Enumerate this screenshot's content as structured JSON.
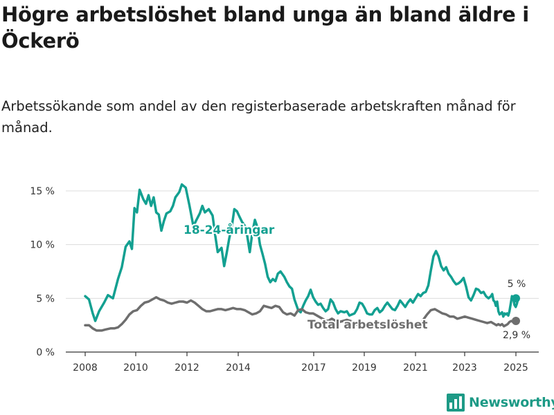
{
  "header": {
    "title": "Högre arbetslöshet bland unga än bland äldre i Öckerö",
    "subtitle": "Arbetssökande som andel av den registerbaserade arbetskraften månad för månad."
  },
  "brand": {
    "name": "Newsworthy",
    "icon": "bar-chart-logo-icon",
    "color": "#1d9a86"
  },
  "chart_data": {
    "type": "line",
    "title": "Högre arbetslöshet bland unga än bland äldre i Öckerö",
    "subtitle": "Arbetssökande som andel av den registerbaserade arbetskraften månad för månad.",
    "xlabel": "",
    "ylabel": "",
    "ylim": [
      0,
      15
    ],
    "xlim": [
      2007.5,
      2025.9
    ],
    "grid": "horizontal",
    "x_ticks": [
      "2008",
      "2010",
      "2012",
      "2014",
      "2017",
      "2019",
      "2021",
      "2023",
      "2025"
    ],
    "y_ticks": [
      "0 %",
      "5 %",
      "10 %",
      "15 %"
    ],
    "series": [
      {
        "name": "18-24-åringar",
        "color": "#13a091",
        "end_label": "5 %",
        "points": [
          [
            2008.0,
            5.2
          ],
          [
            2008.15,
            4.9
          ],
          [
            2008.3,
            3.6
          ],
          [
            2008.4,
            2.9
          ],
          [
            2008.55,
            3.8
          ],
          [
            2008.75,
            4.6
          ],
          [
            2008.9,
            5.3
          ],
          [
            2009.1,
            5.0
          ],
          [
            2009.3,
            6.8
          ],
          [
            2009.45,
            7.9
          ],
          [
            2009.6,
            9.8
          ],
          [
            2009.75,
            10.3
          ],
          [
            2009.85,
            9.6
          ],
          [
            2009.95,
            13.4
          ],
          [
            2010.05,
            13.0
          ],
          [
            2010.15,
            15.1
          ],
          [
            2010.3,
            14.2
          ],
          [
            2010.4,
            13.8
          ],
          [
            2010.5,
            14.6
          ],
          [
            2010.6,
            13.6
          ],
          [
            2010.7,
            14.4
          ],
          [
            2010.8,
            13.0
          ],
          [
            2010.9,
            12.8
          ],
          [
            2011.0,
            11.3
          ],
          [
            2011.1,
            12.2
          ],
          [
            2011.2,
            12.9
          ],
          [
            2011.35,
            13.1
          ],
          [
            2011.45,
            13.6
          ],
          [
            2011.55,
            14.4
          ],
          [
            2011.7,
            14.9
          ],
          [
            2011.8,
            15.6
          ],
          [
            2011.95,
            15.3
          ],
          [
            2012.1,
            13.6
          ],
          [
            2012.25,
            11.7
          ],
          [
            2012.35,
            12.2
          ],
          [
            2012.5,
            12.9
          ],
          [
            2012.6,
            13.6
          ],
          [
            2012.7,
            13.0
          ],
          [
            2012.85,
            13.3
          ],
          [
            2013.0,
            12.7
          ],
          [
            2013.1,
            10.9
          ],
          [
            2013.2,
            9.3
          ],
          [
            2013.35,
            9.7
          ],
          [
            2013.45,
            8.0
          ],
          [
            2013.55,
            9.2
          ],
          [
            2013.65,
            10.6
          ],
          [
            2013.75,
            11.7
          ],
          [
            2013.85,
            13.3
          ],
          [
            2013.95,
            13.1
          ],
          [
            2014.05,
            12.6
          ],
          [
            2014.15,
            12.1
          ],
          [
            2014.3,
            11.6
          ],
          [
            2014.45,
            9.3
          ],
          [
            2014.55,
            11.1
          ],
          [
            2014.65,
            12.3
          ],
          [
            2014.75,
            11.6
          ],
          [
            2014.85,
            10.0
          ],
          [
            2014.95,
            9.1
          ],
          [
            2015.05,
            8.2
          ],
          [
            2015.15,
            7.0
          ],
          [
            2015.25,
            6.5
          ],
          [
            2015.35,
            6.8
          ],
          [
            2015.45,
            6.6
          ],
          [
            2015.55,
            7.3
          ],
          [
            2015.65,
            7.5
          ],
          [
            2015.8,
            7.0
          ],
          [
            2015.9,
            6.5
          ],
          [
            2016.0,
            6.1
          ],
          [
            2016.1,
            5.9
          ],
          [
            2016.2,
            4.9
          ],
          [
            2016.35,
            3.9
          ],
          [
            2016.45,
            3.7
          ],
          [
            2016.55,
            4.3
          ],
          [
            2016.65,
            4.8
          ],
          [
            2016.75,
            5.2
          ],
          [
            2016.85,
            5.8
          ],
          [
            2016.95,
            5.1
          ],
          [
            2017.05,
            4.7
          ],
          [
            2017.15,
            4.4
          ],
          [
            2017.25,
            4.5
          ],
          [
            2017.35,
            4.1
          ],
          [
            2017.45,
            3.8
          ],
          [
            2017.55,
            4.0
          ],
          [
            2017.65,
            4.9
          ],
          [
            2017.75,
            4.6
          ],
          [
            2017.85,
            4.0
          ],
          [
            2017.95,
            3.6
          ],
          [
            2018.05,
            3.8
          ],
          [
            2018.2,
            3.7
          ],
          [
            2018.3,
            3.8
          ],
          [
            2018.4,
            3.4
          ],
          [
            2018.5,
            3.5
          ],
          [
            2018.6,
            3.6
          ],
          [
            2018.7,
            4.0
          ],
          [
            2018.8,
            4.6
          ],
          [
            2018.9,
            4.5
          ],
          [
            2019.0,
            4.1
          ],
          [
            2019.1,
            3.6
          ],
          [
            2019.2,
            3.5
          ],
          [
            2019.3,
            3.5
          ],
          [
            2019.4,
            3.9
          ],
          [
            2019.5,
            4.1
          ],
          [
            2019.6,
            3.7
          ],
          [
            2019.7,
            3.9
          ],
          [
            2019.8,
            4.3
          ],
          [
            2019.9,
            4.6
          ],
          [
            2020.0,
            4.3
          ],
          [
            2020.1,
            4.0
          ],
          [
            2020.2,
            3.9
          ],
          [
            2020.3,
            4.3
          ],
          [
            2020.4,
            4.8
          ],
          [
            2020.5,
            4.5
          ],
          [
            2020.6,
            4.2
          ],
          [
            2020.7,
            4.6
          ],
          [
            2020.8,
            4.9
          ],
          [
            2020.9,
            4.6
          ],
          [
            2021.0,
            5.0
          ],
          [
            2021.1,
            5.4
          ],
          [
            2021.2,
            5.2
          ],
          [
            2021.3,
            5.5
          ],
          [
            2021.4,
            5.6
          ],
          [
            2021.5,
            6.2
          ],
          [
            2021.6,
            7.6
          ],
          [
            2021.7,
            8.9
          ],
          [
            2021.8,
            9.4
          ],
          [
            2021.9,
            8.9
          ],
          [
            2022.0,
            8.0
          ],
          [
            2022.1,
            7.6
          ],
          [
            2022.2,
            7.9
          ],
          [
            2022.3,
            7.3
          ],
          [
            2022.4,
            7.0
          ],
          [
            2022.5,
            6.6
          ],
          [
            2022.6,
            6.3
          ],
          [
            2022.7,
            6.4
          ],
          [
            2022.8,
            6.6
          ],
          [
            2022.9,
            6.9
          ],
          [
            2023.0,
            6.1
          ],
          [
            2023.1,
            5.1
          ],
          [
            2023.2,
            4.8
          ],
          [
            2023.3,
            5.3
          ],
          [
            2023.4,
            5.9
          ],
          [
            2023.5,
            5.8
          ],
          [
            2023.6,
            5.5
          ],
          [
            2023.7,
            5.6
          ],
          [
            2023.8,
            5.2
          ],
          [
            2023.9,
            5.0
          ],
          [
            2024.0,
            5.2
          ],
          [
            2024.1,
            5.4
          ],
          [
            2024.2,
            4.8
          ],
          [
            2024.3,
            4.7
          ],
          [
            2024.4,
            4.3
          ],
          [
            2024.5,
            4.7
          ],
          [
            2024.6,
            3.8
          ],
          [
            2024.7,
            3.5
          ],
          [
            2024.8,
            3.6
          ],
          [
            2024.9,
            3.7
          ],
          [
            2025.0,
            3.3
          ],
          [
            2025.1,
            3.6
          ],
          [
            2025.2,
            3.5
          ],
          [
            2025.3,
            3.6
          ],
          [
            2025.4,
            3.4
          ],
          [
            2025.5,
            3.8
          ],
          [
            2025.6,
            4.5
          ],
          [
            2025.7,
            5.2
          ],
          [
            2025.8,
            5.0
          ],
          [
            2025.9,
            4.4
          ],
          [
            2026.0,
            4.2
          ],
          [
            2026.1,
            4.5
          ],
          [
            2026.2,
            5.0
          ]
        ]
      },
      {
        "name": "Total arbetslöshet",
        "color": "#6e6e6e",
        "end_label": "2,9 %",
        "points": [
          [
            2008.0,
            2.5
          ],
          [
            2008.15,
            2.5
          ],
          [
            2008.3,
            2.2
          ],
          [
            2008.45,
            2.0
          ],
          [
            2008.65,
            2.0
          ],
          [
            2008.8,
            2.1
          ],
          [
            2009.0,
            2.2
          ],
          [
            2009.15,
            2.2
          ],
          [
            2009.3,
            2.3
          ],
          [
            2009.45,
            2.6
          ],
          [
            2009.6,
            3.0
          ],
          [
            2009.75,
            3.5
          ],
          [
            2009.9,
            3.8
          ],
          [
            2010.05,
            3.9
          ],
          [
            2010.2,
            4.3
          ],
          [
            2010.35,
            4.6
          ],
          [
            2010.5,
            4.7
          ],
          [
            2010.65,
            4.9
          ],
          [
            2010.8,
            5.1
          ],
          [
            2010.95,
            4.9
          ],
          [
            2011.1,
            4.8
          ],
          [
            2011.25,
            4.6
          ],
          [
            2011.4,
            4.5
          ],
          [
            2011.55,
            4.6
          ],
          [
            2011.7,
            4.7
          ],
          [
            2011.85,
            4.7
          ],
          [
            2012.0,
            4.6
          ],
          [
            2012.15,
            4.8
          ],
          [
            2012.3,
            4.6
          ],
          [
            2012.45,
            4.3
          ],
          [
            2012.6,
            4.0
          ],
          [
            2012.75,
            3.8
          ],
          [
            2012.9,
            3.8
          ],
          [
            2013.05,
            3.9
          ],
          [
            2013.2,
            4.0
          ],
          [
            2013.35,
            4.0
          ],
          [
            2013.5,
            3.9
          ],
          [
            2013.65,
            4.0
          ],
          [
            2013.8,
            4.1
          ],
          [
            2013.95,
            4.0
          ],
          [
            2014.1,
            4.0
          ],
          [
            2014.25,
            3.9
          ],
          [
            2014.4,
            3.7
          ],
          [
            2014.55,
            3.5
          ],
          [
            2014.7,
            3.6
          ],
          [
            2014.85,
            3.8
          ],
          [
            2015.0,
            4.3
          ],
          [
            2015.15,
            4.2
          ],
          [
            2015.3,
            4.1
          ],
          [
            2015.45,
            4.3
          ],
          [
            2015.6,
            4.2
          ],
          [
            2015.75,
            3.7
          ],
          [
            2015.9,
            3.5
          ],
          [
            2016.05,
            3.6
          ],
          [
            2016.2,
            3.4
          ],
          [
            2016.35,
            3.9
          ],
          [
            2016.5,
            4.0
          ],
          [
            2016.65,
            3.7
          ],
          [
            2016.8,
            3.6
          ],
          [
            2016.95,
            3.6
          ],
          [
            2017.1,
            3.4
          ],
          [
            2017.25,
            3.2
          ],
          [
            2017.4,
            3.0
          ],
          [
            2017.55,
            2.9
          ],
          [
            2017.7,
            3.1
          ],
          [
            2017.85,
            2.9
          ],
          [
            2018.0,
            2.8
          ],
          [
            2018.15,
            2.9
          ],
          [
            2018.3,
            3.0
          ],
          [
            2018.45,
            2.9
          ],
          [
            2018.6,
            2.7
          ],
          [
            2018.75,
            2.5
          ],
          [
            2018.9,
            2.4
          ],
          [
            2019.05,
            2.6
          ],
          [
            2019.2,
            2.7
          ],
          [
            2019.35,
            2.6
          ],
          [
            2019.5,
            2.7
          ],
          [
            2019.65,
            2.5
          ],
          [
            2019.8,
            2.4
          ],
          [
            2019.95,
            2.3
          ],
          [
            2020.1,
            2.3
          ],
          [
            2020.25,
            2.2
          ],
          [
            2020.4,
            2.3
          ],
          [
            2020.55,
            2.2
          ],
          [
            2020.7,
            2.4
          ],
          [
            2020.85,
            2.3
          ],
          [
            2021.0,
            2.3
          ],
          [
            2021.15,
            2.4
          ],
          [
            2021.3,
            3.0
          ],
          [
            2021.45,
            3.5
          ],
          [
            2021.6,
            3.9
          ],
          [
            2021.75,
            4.0
          ],
          [
            2021.9,
            3.8
          ],
          [
            2022.05,
            3.6
          ],
          [
            2022.2,
            3.5
          ],
          [
            2022.35,
            3.3
          ],
          [
            2022.5,
            3.3
          ],
          [
            2022.65,
            3.1
          ],
          [
            2022.8,
            3.2
          ],
          [
            2022.95,
            3.3
          ],
          [
            2023.1,
            3.2
          ],
          [
            2023.25,
            3.1
          ],
          [
            2023.4,
            3.0
          ],
          [
            2023.55,
            2.9
          ],
          [
            2023.7,
            2.8
          ],
          [
            2023.85,
            2.7
          ],
          [
            2024.0,
            2.8
          ],
          [
            2024.15,
            2.7
          ],
          [
            2024.3,
            2.6
          ],
          [
            2024.45,
            2.5
          ],
          [
            2024.6,
            2.6
          ],
          [
            2024.75,
            2.5
          ],
          [
            2024.9,
            2.6
          ],
          [
            2025.05,
            2.4
          ],
          [
            2025.2,
            2.5
          ],
          [
            2025.35,
            2.6
          ],
          [
            2025.5,
            2.8
          ],
          [
            2025.65,
            2.9
          ],
          [
            2025.8,
            2.8
          ],
          [
            2025.95,
            2.9
          ],
          [
            2026.1,
            2.9
          ]
        ]
      }
    ]
  }
}
